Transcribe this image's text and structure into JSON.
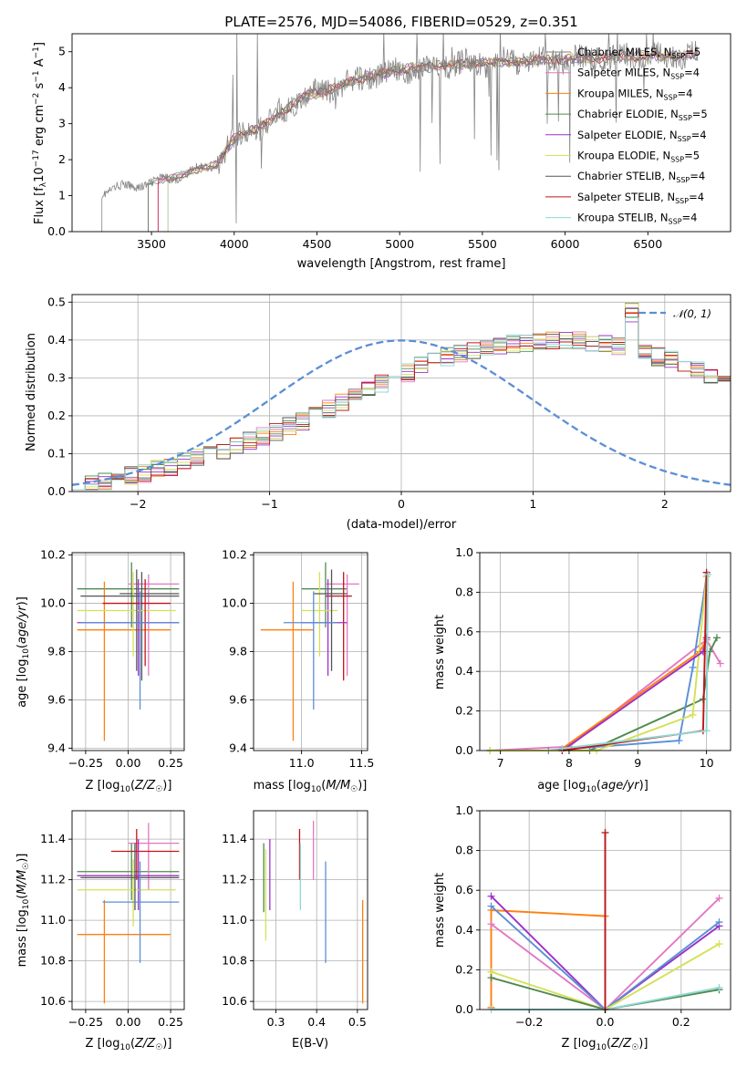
{
  "figure": {
    "title": "PLATE=2576, MJD=54086, FIBERID=0529, z=0.351"
  },
  "models": [
    {
      "name": "Chabrier MILES",
      "nssp": "5",
      "color": "#7f7f7f"
    },
    {
      "name": "Salpeter MILES",
      "nssp": "4",
      "color": "#e377c2"
    },
    {
      "name": "Kroupa MILES",
      "nssp": "4",
      "color": "#ff7f0e"
    },
    {
      "name": "Chabrier ELODIE",
      "nssp": "5",
      "color": "#4f8a4f"
    },
    {
      "name": "Salpeter ELODIE",
      "nssp": "4",
      "color": "#9b30c8"
    },
    {
      "name": "Kroupa ELODIE",
      "nssp": "5",
      "color": "#d4e157"
    },
    {
      "name": "Chabrier STELIB",
      "nssp": "4",
      "color": "#555555"
    },
    {
      "name": "Salpeter STELIB",
      "nssp": "4",
      "color": "#c0141a"
    },
    {
      "name": "Kroupa STELIB",
      "nssp": "4",
      "color": "#8fd8d2"
    }
  ],
  "chart_data": [
    {
      "id": "spectrum",
      "type": "line",
      "xlabel": "wavelength [Angstrom, rest frame]",
      "ylabel": "Flux [f_λ10^-17 erg cm^-2 s^-1 A^-1]",
      "xlim": [
        3020,
        7000
      ],
      "ylim": [
        0,
        5.5
      ],
      "xticks": [
        3500,
        4000,
        4500,
        5000,
        5500,
        6000,
        6500
      ],
      "yticks": [
        0,
        1,
        2,
        3,
        4,
        5
      ],
      "legend_position": "top-right",
      "data_start_x": 3200,
      "continuum": [
        [
          3200,
          1.1
        ],
        [
          3400,
          1.3
        ],
        [
          3500,
          1.35
        ],
        [
          3700,
          1.6
        ],
        [
          3900,
          1.9
        ],
        [
          4000,
          2.6
        ],
        [
          4200,
          3.0
        ],
        [
          4400,
          3.7
        ],
        [
          4600,
          4.0
        ],
        [
          4800,
          4.3
        ],
        [
          5000,
          4.5
        ],
        [
          5200,
          4.6
        ],
        [
          5500,
          4.7
        ],
        [
          5800,
          4.75
        ],
        [
          6000,
          4.8
        ],
        [
          6300,
          4.85
        ],
        [
          6500,
          4.88
        ],
        [
          6800,
          4.9
        ]
      ]
    },
    {
      "id": "residuals",
      "type": "histogram",
      "xlabel": "(data-model)/error",
      "ylabel": "Normed distribution",
      "xlim": [
        -2.5,
        2.5
      ],
      "ylim": [
        0,
        0.52
      ],
      "xticks": [
        -2,
        -1,
        0,
        1,
        2
      ],
      "yticks": [
        0.0,
        0.1,
        0.2,
        0.3,
        0.4,
        0.5
      ],
      "reference_curve": "N(0,1)",
      "reference_label": "𝒩(0, 1)",
      "reference_color": "#5b8fd6",
      "legend_position": "top-right",
      "bin_width": 0.1,
      "bin_start": -2.5,
      "base_values": [
        0.018,
        0.022,
        0.028,
        0.032,
        0.042,
        0.047,
        0.058,
        0.066,
        0.078,
        0.088,
        0.098,
        0.106,
        0.119,
        0.132,
        0.145,
        0.156,
        0.172,
        0.186,
        0.203,
        0.217,
        0.235,
        0.25,
        0.268,
        0.283,
        0.301,
        0.313,
        0.33,
        0.341,
        0.355,
        0.364,
        0.372,
        0.381,
        0.387,
        0.391,
        0.394,
        0.398,
        0.399,
        0.398,
        0.397,
        0.392,
        0.388,
        0.382,
        0.472,
        0.365,
        0.357,
        0.347,
        0.334,
        0.322,
        0.307,
        0.293,
        0.277,
        0.262,
        0.246,
        0.23,
        0.215,
        0.199,
        0.183,
        0.171,
        0.153,
        0.142,
        0.128,
        0.116,
        0.104,
        0.091,
        0.081,
        0.071,
        0.062,
        0.052,
        0.045,
        0.038,
        0.031,
        0.026,
        0.022,
        0.018,
        0.014
      ]
    },
    {
      "id": "age_vs_Z",
      "type": "errorbar",
      "xlabel": "Z [log10(Z/Z☉)]",
      "ylabel": "age [log10(age/yr)]",
      "xlim": [
        -0.33,
        0.33
      ],
      "ylim": [
        9.39,
        10.21
      ],
      "xticks": [
        -0.25,
        0.0,
        0.25
      ],
      "xticklabels": [
        "−0.25",
        "0.00",
        "0.25"
      ],
      "yticks": [
        9.4,
        9.6,
        9.8,
        10.0,
        10.2
      ],
      "points": [
        {
          "x": 0.02,
          "xlo": -0.3,
          "xhi": 0.3,
          "y": 10.06,
          "ylo": 9.9,
          "yhi": 10.17,
          "c": "#4f8a4f"
        },
        {
          "x": 0.12,
          "xlo": 0.0,
          "xhi": 0.3,
          "y": 10.08,
          "ylo": 9.7,
          "yhi": 10.12,
          "c": "#e377c2"
        },
        {
          "x": -0.14,
          "xlo": -0.3,
          "xhi": 0.25,
          "y": 9.89,
          "ylo": 9.43,
          "yhi": 10.09,
          "c": "#ff7f0e"
        },
        {
          "x": 0.08,
          "xlo": -0.05,
          "xhi": 0.3,
          "y": 10.04,
          "ylo": 9.68,
          "yhi": 10.13,
          "c": "#555555"
        },
        {
          "x": 0.06,
          "xlo": -0.3,
          "xhi": 0.3,
          "y": 9.92,
          "ylo": 9.7,
          "yhi": 10.1,
          "c": "#9b30c8"
        },
        {
          "x": 0.03,
          "xlo": -0.3,
          "xhi": 0.28,
          "y": 9.97,
          "ylo": 9.78,
          "yhi": 10.13,
          "c": "#d4e157"
        },
        {
          "x": 0.05,
          "xlo": -0.28,
          "xhi": 0.3,
          "y": 10.03,
          "ylo": 9.72,
          "yhi": 10.14,
          "c": "#555555"
        },
        {
          "x": 0.1,
          "xlo": -0.15,
          "xhi": 0.25,
          "y": 10.0,
          "ylo": 9.74,
          "yhi": 10.1,
          "c": "#c0141a"
        },
        {
          "x": 0.07,
          "xlo": -0.28,
          "xhi": 0.3,
          "y": 9.92,
          "ylo": 9.56,
          "yhi": 10.05,
          "c": "#5b8fd6"
        }
      ]
    },
    {
      "id": "age_vs_mass",
      "type": "errorbar",
      "xlabel": "mass [log10(M/M☉)]",
      "xlim": [
        10.6,
        11.55
      ],
      "ylim": [
        9.39,
        10.21
      ],
      "xticks": [
        11.0,
        11.5
      ],
      "xticklabels": [
        "11.0",
        "11.5"
      ],
      "yticks": [
        9.4,
        9.6,
        9.8,
        10.0,
        10.2
      ],
      "points": [
        {
          "x": 11.2,
          "xlo": 11.0,
          "xhi": 11.38,
          "y": 10.06,
          "ylo": 9.9,
          "yhi": 10.17,
          "c": "#4f8a4f"
        },
        {
          "x": 11.38,
          "xlo": 11.2,
          "xhi": 11.48,
          "y": 10.08,
          "ylo": 9.7,
          "yhi": 10.12,
          "c": "#e377c2"
        },
        {
          "x": 10.93,
          "xlo": 10.66,
          "xhi": 11.1,
          "y": 9.89,
          "ylo": 9.43,
          "yhi": 10.09,
          "c": "#ff7f0e"
        },
        {
          "x": 11.35,
          "xlo": 11.2,
          "xhi": 11.42,
          "y": 10.03,
          "ylo": 9.68,
          "yhi": 10.13,
          "c": "#c0141a"
        },
        {
          "x": 11.22,
          "xlo": 11.0,
          "xhi": 11.38,
          "y": 9.92,
          "ylo": 9.7,
          "yhi": 10.1,
          "c": "#9b30c8"
        },
        {
          "x": 11.15,
          "xlo": 11.0,
          "xhi": 11.3,
          "y": 9.97,
          "ylo": 9.78,
          "yhi": 10.13,
          "c": "#d4e157"
        },
        {
          "x": 11.25,
          "xlo": 11.1,
          "xhi": 11.38,
          "y": 10.04,
          "ylo": 9.72,
          "yhi": 10.14,
          "c": "#555555"
        },
        {
          "x": 11.1,
          "xlo": 10.85,
          "xhi": 11.3,
          "y": 9.92,
          "ylo": 9.56,
          "yhi": 10.05,
          "c": "#5b8fd6"
        }
      ]
    },
    {
      "id": "weight_vs_age",
      "type": "line",
      "xlabel": "age [log10(age/yr)]",
      "ylabel": "mass weight",
      "xlim": [
        6.7,
        10.35
      ],
      "ylim": [
        0,
        1.0
      ],
      "xticks": [
        7,
        8,
        9,
        10
      ],
      "yticks": [
        0.0,
        0.2,
        0.4,
        0.6,
        0.8,
        1.0
      ],
      "series": [
        {
          "c": "#e377c2",
          "pts": [
            [
              6.85,
              0.0
            ],
            [
              8.0,
              0.02
            ],
            [
              10.0,
              0.56
            ],
            [
              10.2,
              0.44
            ]
          ]
        },
        {
          "c": "#4f8a4f",
          "pts": [
            [
              6.85,
              0.0
            ],
            [
              8.3,
              0.0
            ],
            [
              9.95,
              0.26
            ],
            [
              10.05,
              0.5
            ],
            [
              10.15,
              0.57
            ]
          ]
        },
        {
          "c": "#5b8fd6",
          "pts": [
            [
              7.7,
              0.0
            ],
            [
              9.6,
              0.05
            ],
            [
              9.8,
              0.42
            ],
            [
              10.0,
              0.88
            ]
          ]
        },
        {
          "c": "#ff7f0e",
          "pts": [
            [
              7.9,
              0.01
            ],
            [
              9.9,
              0.5
            ],
            [
              10.0,
              0.56
            ]
          ]
        },
        {
          "c": "#d4e157",
          "pts": [
            [
              6.85,
              0.0
            ],
            [
              8.4,
              0.0
            ],
            [
              9.8,
              0.18
            ],
            [
              10.0,
              0.88
            ]
          ]
        },
        {
          "c": "#9b30c8",
          "pts": [
            [
              7.9,
              0.0
            ],
            [
              9.95,
              0.5
            ],
            [
              10.0,
              0.57
            ]
          ]
        },
        {
          "c": "#c0141a",
          "pts": [
            [
              7.9,
              0.0
            ],
            [
              9.95,
              0.1
            ],
            [
              10.0,
              0.9
            ]
          ]
        },
        {
          "c": "#8fd8d2",
          "pts": [
            [
              7.9,
              0.01
            ],
            [
              10.0,
              0.1
            ],
            [
              10.02,
              0.89
            ]
          ]
        }
      ]
    },
    {
      "id": "mass_vs_Z",
      "type": "errorbar",
      "xlabel": "Z [log10(Z/Z☉)]",
      "ylabel": "mass [log10(M/M☉)]",
      "xlim": [
        -0.33,
        0.33
      ],
      "ylim": [
        10.56,
        11.54
      ],
      "xticks": [
        -0.25,
        0.0,
        0.25
      ],
      "xticklabels": [
        "−0.25",
        "0.00",
        "0.25"
      ],
      "yticks": [
        10.6,
        10.8,
        11.0,
        11.2,
        11.4
      ],
      "points": [
        {
          "x": 0.02,
          "xlo": -0.3,
          "xhi": 0.3,
          "y": 11.24,
          "ylo": 11.1,
          "yhi": 11.38,
          "c": "#4f8a4f"
        },
        {
          "x": 0.12,
          "xlo": 0.0,
          "xhi": 0.3,
          "y": 11.38,
          "ylo": 11.15,
          "yhi": 11.48,
          "c": "#e377c2"
        },
        {
          "x": -0.14,
          "xlo": -0.3,
          "xhi": 0.25,
          "y": 10.93,
          "ylo": 10.59,
          "yhi": 11.1,
          "c": "#ff7f0e"
        },
        {
          "x": 0.05,
          "xlo": -0.1,
          "xhi": 0.3,
          "y": 11.34,
          "ylo": 11.2,
          "yhi": 11.45,
          "c": "#c0141a"
        },
        {
          "x": 0.06,
          "xlo": -0.3,
          "xhi": 0.3,
          "y": 11.22,
          "ylo": 11.05,
          "yhi": 11.4,
          "c": "#9b30c8"
        },
        {
          "x": 0.03,
          "xlo": -0.3,
          "xhi": 0.28,
          "y": 11.15,
          "ylo": 10.97,
          "yhi": 11.3,
          "c": "#d4e157"
        },
        {
          "x": 0.04,
          "xlo": -0.28,
          "xhi": 0.3,
          "y": 11.21,
          "ylo": 11.05,
          "yhi": 11.38,
          "c": "#555555"
        },
        {
          "x": 0.07,
          "xlo": -0.15,
          "xhi": 0.3,
          "y": 11.09,
          "ylo": 10.79,
          "yhi": 11.29,
          "c": "#5b8fd6"
        }
      ]
    },
    {
      "id": "mass_vs_ebv",
      "type": "errorbar",
      "xlabel": "E(B-V)",
      "xlim": [
        0.245,
        0.525
      ],
      "ylim": [
        10.56,
        11.54
      ],
      "xticks": [
        0.3,
        0.4,
        0.5
      ],
      "xticklabels": [
        "0.3",
        "0.4",
        "0.5"
      ],
      "yticks": [
        10.6,
        10.8,
        11.0,
        11.2,
        11.4
      ],
      "points": [
        {
          "x": 0.27,
          "y": 11.21,
          "ylo": 11.04,
          "yhi": 11.38,
          "c": "#4f8a4f"
        },
        {
          "x": 0.275,
          "y": 11.15,
          "ylo": 10.9,
          "yhi": 11.35,
          "c": "#d4e157"
        },
        {
          "x": 0.285,
          "y": 11.22,
          "ylo": 11.05,
          "yhi": 11.4,
          "c": "#9b30c8"
        },
        {
          "x": 0.358,
          "y": 11.35,
          "ylo": 11.2,
          "yhi": 11.45,
          "c": "#c0141a"
        },
        {
          "x": 0.36,
          "y": 11.2,
          "ylo": 11.05,
          "yhi": 11.38,
          "c": "#8fd8d2"
        },
        {
          "x": 0.392,
          "y": 11.38,
          "ylo": 11.2,
          "yhi": 11.49,
          "c": "#e377c2"
        },
        {
          "x": 0.422,
          "y": 11.09,
          "ylo": 10.79,
          "yhi": 11.29,
          "c": "#5b8fd6"
        },
        {
          "x": 0.513,
          "y": 10.93,
          "ylo": 10.59,
          "yhi": 11.1,
          "c": "#ff7f0e"
        }
      ]
    },
    {
      "id": "weight_vs_Z",
      "type": "line",
      "xlabel": "Z [log10(Z/Z☉)]",
      "ylabel": "mass weight",
      "xlim": [
        -0.33,
        0.33
      ],
      "ylim": [
        0,
        1.0
      ],
      "xticks": [
        -0.2,
        0.0,
        0.2
      ],
      "xticklabels": [
        "−0.2",
        "0.0",
        "0.2"
      ],
      "yticks": [
        0.0,
        0.2,
        0.4,
        0.6,
        0.8,
        1.0
      ],
      "series": [
        {
          "c": "#ff7f0e",
          "pts": [
            [
              -0.3,
              0.01
            ],
            [
              -0.3,
              0.5
            ],
            [
              0.0,
              0.47
            ]
          ]
        },
        {
          "c": "#e377c2",
          "pts": [
            [
              -0.3,
              0.43
            ],
            [
              0.0,
              0.0
            ],
            [
              0.3,
              0.56
            ]
          ]
        },
        {
          "c": "#9b30c8",
          "pts": [
            [
              -0.3,
              0.57
            ],
            [
              0.0,
              0.0
            ],
            [
              0.3,
              0.42
            ]
          ]
        },
        {
          "c": "#5b8fd6",
          "pts": [
            [
              -0.3,
              0.52
            ],
            [
              0.0,
              0.0
            ],
            [
              0.3,
              0.44
            ]
          ]
        },
        {
          "c": "#d4e157",
          "pts": [
            [
              -0.3,
              0.19
            ],
            [
              0.0,
              0.0
            ],
            [
              0.3,
              0.33
            ]
          ]
        },
        {
          "c": "#4f8a4f",
          "pts": [
            [
              -0.3,
              0.16
            ],
            [
              0.0,
              0.0
            ],
            [
              0.3,
              0.1
            ]
          ]
        },
        {
          "c": "#8fd8d2",
          "pts": [
            [
              -0.3,
              0.0
            ],
            [
              0.0,
              0.0
            ],
            [
              0.0,
              0.89
            ],
            [
              0.0,
              0.0
            ],
            [
              0.3,
              0.11
            ]
          ]
        },
        {
          "c": "#c0141a",
          "pts": [
            [
              0.0,
              0.0
            ],
            [
              0.0,
              0.89
            ]
          ]
        }
      ]
    }
  ]
}
